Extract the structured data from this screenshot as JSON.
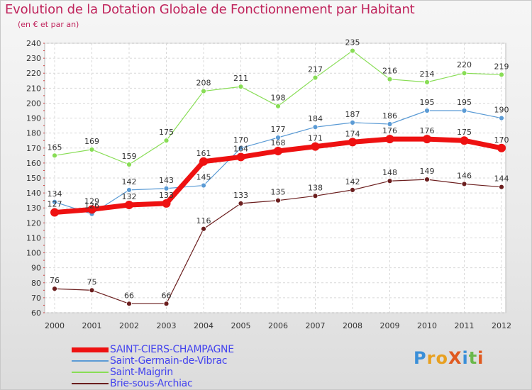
{
  "title": "Evolution de la Dotation Globale de Fonctionnement par Habitant",
  "subtitle": "(en € et par an)",
  "logo": {
    "text": "ProXiti",
    "letters": [
      {
        "ch": "P",
        "color": "#3a8fd8"
      },
      {
        "ch": "r",
        "color": "#e8a020"
      },
      {
        "ch": "o",
        "color": "#e8a020"
      },
      {
        "ch": "X",
        "color": "#e05a20"
      },
      {
        "ch": "i",
        "color": "#3a8fd8"
      },
      {
        "ch": "t",
        "color": "#6ab84a"
      },
      {
        "ch": "i",
        "color": "#e05a20"
      }
    ]
  },
  "chart_data": {
    "type": "line",
    "title": "Evolution de la Dotation Globale de Fonctionnement par Habitant",
    "ylabel": "(en € et par an)",
    "x": [
      "2000",
      "2001",
      "2002",
      "2003",
      "2004",
      "2005",
      "2006",
      "2007",
      "2008",
      "2009",
      "2010",
      "2011",
      "2012"
    ],
    "ylim": [
      60,
      240
    ],
    "yticks": [
      60,
      70,
      80,
      90,
      100,
      110,
      120,
      130,
      140,
      150,
      160,
      170,
      180,
      190,
      200,
      210,
      220,
      230,
      240
    ],
    "grid": true,
    "legend_position": "bottom-left",
    "series": [
      {
        "name": "SAINT-CIERS-CHAMPAGNE",
        "color": "#ee1111",
        "labelColor": "#4444ee",
        "values": [
          127,
          129,
          132,
          133,
          161,
          164,
          168,
          171,
          174,
          176,
          176,
          175,
          170
        ],
        "labels": [
          "127",
          "129",
          "132",
          "133",
          "161",
          "164",
          "168",
          "171",
          "174",
          "176",
          "176",
          "175",
          "170"
        ]
      },
      {
        "name": "Saint-Germain-de-Vibrac",
        "color": "#5b9bd5",
        "labelColor": "#4444ee",
        "values": [
          134,
          126,
          142,
          143,
          145,
          170,
          177,
          184,
          187,
          186,
          195,
          195,
          190
        ],
        "labels": [
          "134",
          "126",
          "142",
          "143",
          "145",
          "170",
          "177",
          "184",
          "187",
          "186",
          "195",
          "195",
          "190"
        ]
      },
      {
        "name": "Saint-Maigrin",
        "color": "#88dd55",
        "labelColor": "#4444ee",
        "values": [
          165,
          169,
          159,
          175,
          208,
          211,
          198,
          217,
          235,
          216,
          214,
          220,
          219
        ],
        "labels": [
          "165",
          "169",
          "159",
          "175",
          "208",
          "211",
          "198",
          "217",
          "235",
          "216",
          "214",
          "220",
          "219"
        ]
      },
      {
        "name": "Brie-sous-Archiac",
        "color": "#6b1e1e",
        "labelColor": "#4444ee",
        "values": [
          76,
          75,
          66,
          66,
          116,
          133,
          135,
          138,
          142,
          148,
          149,
          146,
          144
        ],
        "labels": [
          "76",
          "75",
          "66",
          "66",
          "116",
          "133",
          "135",
          "138",
          "142",
          "148",
          "149",
          "146",
          "144"
        ]
      }
    ]
  }
}
